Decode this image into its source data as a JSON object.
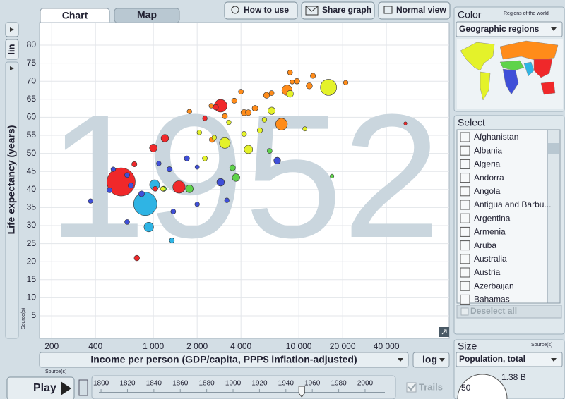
{
  "tabs": [
    "Chart",
    "Map"
  ],
  "buttons": [
    "How to use",
    "Share graph",
    "Normal view"
  ],
  "scale_toggle": "lin",
  "sources": "Source(s)",
  "x_scale_dropdown": "log",
  "play": "Play",
  "trails": "Trails",
  "timeline": {
    "ticks": [
      1800,
      1820,
      1840,
      1860,
      1880,
      1900,
      1920,
      1940,
      1960,
      1980,
      2000
    ],
    "lim": [
      1793,
      2015
    ]
  },
  "color_panel": {
    "title": "Color",
    "note": "Regions of the world",
    "dropdown": "Geographic regions"
  },
  "select_panel": {
    "title": "Select",
    "countries": [
      "Afghanistan",
      "Albania",
      "Algeria",
      "Andorra",
      "Angola",
      "Antigua and Barbu...",
      "Argentina",
      "Armenia",
      "Aruba",
      "Australia",
      "Austria",
      "Azerbaijan",
      "Bahamas"
    ],
    "deselect": "Deselect all"
  },
  "size_panel": {
    "title": "Size",
    "dropdown": "Population, total",
    "min": 50
  },
  "chart_data": {
    "type": "bubble",
    "year": 1952,
    "xlabel": "Income per person (GDP/capita, PPP$ inflation-adjusted)",
    "ylabel": "Life expectancy (years)",
    "log_x": true,
    "grid": true,
    "xlim": [
      165,
      108000
    ],
    "ylim": [
      -1.25,
      86.25
    ],
    "xticks": [
      200,
      400,
      {
        "value": 1000,
        "label": "1 000"
      },
      {
        "value": 2000,
        "label": "2 000"
      },
      {
        "value": 4000,
        "label": "4 000"
      },
      {
        "value": 10000,
        "label": "10 000"
      },
      {
        "value": 20000,
        "label": "20 000"
      },
      {
        "value": 40000,
        "label": "40 000"
      }
    ],
    "yticks": [
      5,
      10,
      15,
      20,
      25,
      30,
      35,
      40,
      45,
      50,
      55,
      60,
      65,
      70,
      75,
      80
    ],
    "size_max": {
      "value": 1380,
      "label": "1.38 B"
    },
    "x": [
      600,
      880,
      16000,
      7600,
      8300,
      2900,
      1500,
      1000,
      1200,
      770,
      930,
      1020,
      1340,
      7100,
      2900,
      3700,
      3500,
      16900,
      370,
      500,
      660,
      700,
      830,
      1090,
      1290,
      1370,
      2000,
      3200,
      2000,
      660,
      530,
      1700,
      1180,
      1770,
      3100,
      4500,
      2260,
      2620,
      4200,
      5400,
      5800,
      6500,
      11000,
      1160,
      2070,
      8700,
      4000,
      4500,
      4200,
      3600,
      6000,
      6500,
      2500,
      1770,
      2530,
      3100,
      9700,
      11800,
      21000,
      8700,
      2680,
      1030,
      2260,
      54000,
      740,
      6300,
      9000,
      12500,
      5000,
      3300
    ],
    "y": [
      42.1,
      36,
      68.3,
      58.1,
      67.5,
      63.2,
      40.7,
      51.5,
      54.2,
      21,
      29.6,
      41.3,
      25.9,
      48,
      42,
      43.3,
      46,
      43.7,
      36.8,
      39.8,
      44,
      41.1,
      38.8,
      47.2,
      45.6,
      33.9,
      35.9,
      37,
      46.2,
      31,
      45.6,
      48.6,
      40.2,
      40.2,
      52.9,
      51.1,
      48.6,
      54.4,
      55.4,
      56.4,
      59.3,
      61.8,
      56.8,
      40.2,
      55.8,
      66.5,
      67.1,
      61.3,
      61.3,
      64.6,
      66.1,
      66.7,
      63.2,
      61.6,
      53.8,
      60.3,
      70,
      68.7,
      69.6,
      72.4,
      62.8,
      40.2,
      59.7,
      58.3,
      47,
      50.7,
      69.8,
      71.5,
      62.5,
      58.6
    ],
    "size": [
      570,
      372,
      158,
      70,
      50,
      86,
      80,
      21,
      20,
      6,
      40,
      45,
      4,
      14,
      20,
      20,
      8,
      1,
      3,
      5,
      4,
      6,
      8,
      3,
      5,
      4,
      3,
      3,
      2,
      4,
      3,
      5,
      5,
      21,
      55,
      28,
      4,
      3,
      4,
      5,
      3,
      18,
      2,
      3,
      3,
      14,
      4,
      8,
      10,
      5,
      9,
      4,
      3,
      3,
      6,
      5,
      7,
      10,
      3,
      4,
      6,
      4,
      3,
      0.1,
      5,
      4,
      2,
      5,
      8,
      3
    ],
    "colors": [
      "#f0282a",
      "#2fb4e4",
      "#e4f22a",
      "#ff8c1a",
      "#ff8c1a",
      "#f0282a",
      "#f0282a",
      "#f0282a",
      "#f0282a",
      "#f0282a",
      "#2fb4e4",
      "#2fb4e4",
      "#2fb4e4",
      "#3f4fd8",
      "#3f4fd8",
      "#5fd34a",
      "#5fd34a",
      "#5fd34a",
      "#3f4fd8",
      "#3f4fd8",
      "#3f4fd8",
      "#3f4fd8",
      "#3f4fd8",
      "#3f4fd8",
      "#3f4fd8",
      "#3f4fd8",
      "#3f4fd8",
      "#3f4fd8",
      "#3f4fd8",
      "#3f4fd8",
      "#3f4fd8",
      "#3f4fd8",
      "#5fd34a",
      "#5fd34a",
      "#e4f22a",
      "#e4f22a",
      "#e4f22a",
      "#e4f22a",
      "#e4f22a",
      "#e4f22a",
      "#e4f22a",
      "#e4f22a",
      "#e4f22a",
      "#e4f22a",
      "#e4f22a",
      "#e4f22a",
      "#ff8c1a",
      "#ff8c1a",
      "#ff8c1a",
      "#ff8c1a",
      "#ff8c1a",
      "#ff8c1a",
      "#ff8c1a",
      "#ff8c1a",
      "#ff8c1a",
      "#ff8c1a",
      "#ff8c1a",
      "#ff8c1a",
      "#ff8c1a",
      "#ff8c1a",
      "#f0282a",
      "#f0282a",
      "#f0282a",
      "#f0282a",
      "#f0282a",
      "#5fd34a",
      "#ff8c1a",
      "#ff8c1a",
      "#ff8c1a",
      "#e4f22a"
    ]
  }
}
